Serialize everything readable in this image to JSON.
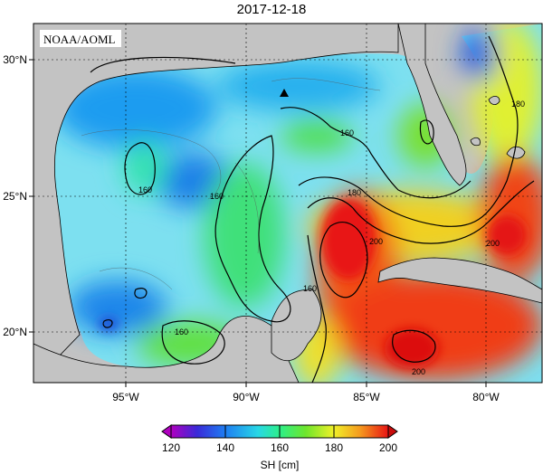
{
  "title": "2017-12-18",
  "credit": "NOAA/AOML",
  "map": {
    "lon_ticks": [
      "95°W",
      "90°W",
      "85°W",
      "80°W"
    ],
    "lat_ticks": [
      "30°N",
      "25°N",
      "20°N"
    ],
    "contour_labels": [
      "160",
      "160",
      "160",
      "160",
      "180",
      "180",
      "200",
      "200",
      "200",
      "160"
    ],
    "marker": "black-triangle"
  },
  "colorbar": {
    "label": "SH [cm]",
    "ticks": [
      "120",
      "140",
      "160",
      "180",
      "200"
    ],
    "colors": [
      "#b000c0",
      "#3a2ad8",
      "#1e7ef2",
      "#28d7e6",
      "#2cf08a",
      "#6ee62c",
      "#f0f028",
      "#f59a1e",
      "#f02c18",
      "#c80c0c"
    ]
  }
}
